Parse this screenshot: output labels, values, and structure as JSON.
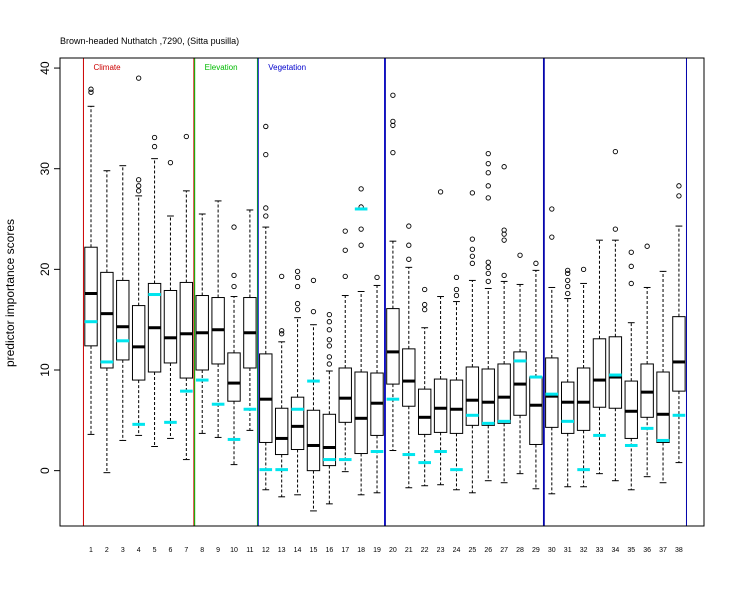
{
  "chart_data": {
    "type": "boxplot",
    "title": "Brown-headed Nuthatch ,7290, (Sitta pusilla)",
    "xlabel": "",
    "ylabel": "predictor importance scores",
    "ylim": [
      -5.5,
      41
    ],
    "yticks": [
      0,
      10,
      20,
      30,
      40
    ],
    "grid": false,
    "categories": [
      "1",
      "2",
      "3",
      "4",
      "5",
      "6",
      "7",
      "8",
      "9",
      "10",
      "11",
      "12",
      "13",
      "14",
      "15",
      "16",
      "17",
      "18",
      "19",
      "20",
      "21",
      "22",
      "23",
      "24",
      "25",
      "26",
      "27",
      "28",
      "29",
      "30",
      "31",
      "32",
      "33",
      "34",
      "35",
      "36",
      "37",
      "38"
    ],
    "groups": [
      {
        "label": "Climate",
        "color": "#cc0000",
        "start": 1,
        "end": 7
      },
      {
        "label": "Elevation",
        "color": "#00bb00",
        "start": 8,
        "end": 11
      },
      {
        "label": "Vegetation",
        "color": "#0000cc",
        "start": 12,
        "end": 19
      },
      {
        "label": "",
        "color": "#0000aa",
        "start": 20,
        "end": 29
      },
      {
        "label": "",
        "color": "#0000aa",
        "start": 30,
        "end": 38
      }
    ],
    "marker_color": "#00e5ee",
    "boxes": [
      {
        "x": "1",
        "low": 3.6,
        "q1": 12.4,
        "median": 17.6,
        "q3": 22.2,
        "high": 36.2,
        "outliers": [
          37.6,
          37.9
        ],
        "marker": 14.8
      },
      {
        "x": "2",
        "low": -0.2,
        "q1": 10.2,
        "median": 15.6,
        "q3": 19.7,
        "high": 29.8,
        "outliers": [],
        "marker": 10.8
      },
      {
        "x": "3",
        "low": 3.0,
        "q1": 11.0,
        "median": 14.3,
        "q3": 18.9,
        "high": 30.3,
        "outliers": [],
        "marker": 12.9
      },
      {
        "x": "4",
        "low": 3.5,
        "q1": 9.0,
        "median": 12.3,
        "q3": 16.4,
        "high": 27.3,
        "outliers": [
          27.8,
          28.3,
          28.9,
          39.0
        ],
        "marker": 4.6
      },
      {
        "x": "5",
        "low": 2.4,
        "q1": 9.8,
        "median": 14.2,
        "q3": 18.6,
        "high": 31.0,
        "outliers": [
          32.2,
          33.1
        ],
        "marker": 17.5
      },
      {
        "x": "6",
        "low": 3.2,
        "q1": 10.7,
        "median": 13.2,
        "q3": 17.9,
        "high": 25.3,
        "outliers": [
          30.6
        ],
        "marker": 4.8
      },
      {
        "x": "7",
        "low": 1.1,
        "q1": 9.2,
        "median": 13.6,
        "q3": 18.7,
        "high": 27.8,
        "outliers": [
          33.2
        ],
        "marker": 7.9
      },
      {
        "x": "8",
        "low": 3.7,
        "q1": 10.0,
        "median": 13.7,
        "q3": 17.4,
        "high": 25.5,
        "outliers": [],
        "marker": 9.0
      },
      {
        "x": "9",
        "low": 3.3,
        "q1": 10.6,
        "median": 14.0,
        "q3": 17.2,
        "high": 26.8,
        "outliers": [],
        "marker": 6.6
      },
      {
        "x": "10",
        "low": 0.6,
        "q1": 6.9,
        "median": 8.7,
        "q3": 11.7,
        "high": 17.3,
        "outliers": [
          18.3,
          19.4,
          24.2
        ],
        "marker": 3.1
      },
      {
        "x": "11",
        "low": 4.0,
        "q1": 10.2,
        "median": 13.7,
        "q3": 17.2,
        "high": 25.9,
        "outliers": [],
        "marker": 6.1
      },
      {
        "x": "12",
        "low": -1.9,
        "q1": 2.8,
        "median": 7.1,
        "q3": 11.6,
        "high": 24.2,
        "outliers": [
          25.3,
          26.1,
          31.4,
          34.2
        ],
        "marker": 0.1
      },
      {
        "x": "13",
        "low": -2.6,
        "q1": 1.6,
        "median": 3.2,
        "q3": 6.2,
        "high": 12.8,
        "outliers": [
          13.6,
          13.9,
          19.3
        ],
        "marker": 0.1
      },
      {
        "x": "14",
        "low": -2.4,
        "q1": 2.1,
        "median": 4.4,
        "q3": 7.3,
        "high": 15.2,
        "outliers": [
          16.0,
          16.6,
          18.3,
          19.2,
          19.8
        ],
        "marker": 6.1
      },
      {
        "x": "15",
        "low": -4.0,
        "q1": 0.0,
        "median": 2.5,
        "q3": 6.0,
        "high": 14.5,
        "outliers": [
          15.8,
          18.9
        ],
        "marker": 8.9
      },
      {
        "x": "16",
        "low": -3.3,
        "q1": 0.5,
        "median": 2.3,
        "q3": 5.6,
        "high": 9.9,
        "outliers": [
          10.6,
          11.3,
          12.4,
          13.0,
          14.0,
          14.8,
          15.5
        ],
        "marker": 1.1
      },
      {
        "x": "17",
        "low": -0.1,
        "q1": 4.8,
        "median": 7.2,
        "q3": 10.2,
        "high": 17.4,
        "outliers": [
          19.3,
          21.9,
          23.8
        ],
        "marker": 1.1
      },
      {
        "x": "18",
        "low": -2.4,
        "q1": 1.7,
        "median": 5.2,
        "q3": 9.8,
        "high": 17.8,
        "outliers": [
          22.4,
          24.0,
          26.2,
          28.0
        ],
        "marker": 26.0
      },
      {
        "x": "19",
        "low": -2.2,
        "q1": 3.5,
        "median": 6.7,
        "q3": 9.7,
        "high": 18.4,
        "outliers": [
          19.2
        ],
        "marker": 1.9
      },
      {
        "x": "20",
        "low": 2.0,
        "q1": 8.6,
        "median": 11.8,
        "q3": 16.1,
        "high": 22.8,
        "outliers": [
          31.6,
          34.3,
          34.7,
          37.3
        ],
        "marker": 7.1
      },
      {
        "x": "21",
        "low": -1.7,
        "q1": 6.4,
        "median": 8.9,
        "q3": 12.1,
        "high": 20.2,
        "outliers": [
          21.0,
          22.4,
          24.3
        ],
        "marker": 1.6
      },
      {
        "x": "22",
        "low": -1.5,
        "q1": 3.6,
        "median": 5.3,
        "q3": 8.1,
        "high": 14.2,
        "outliers": [
          16.0,
          16.5,
          18.0
        ],
        "marker": 0.8
      },
      {
        "x": "23",
        "low": -1.4,
        "q1": 3.8,
        "median": 6.2,
        "q3": 9.1,
        "high": 17.3,
        "outliers": [
          27.7
        ],
        "marker": 1.9
      },
      {
        "x": "24",
        "low": -1.9,
        "q1": 3.7,
        "median": 6.1,
        "q3": 9.0,
        "high": 16.8,
        "outliers": [
          17.4,
          18.0,
          19.2
        ],
        "marker": 0.1
      },
      {
        "x": "25",
        "low": -2.2,
        "q1": 4.5,
        "median": 7.0,
        "q3": 10.3,
        "high": 18.9,
        "outliers": [
          20.6,
          21.3,
          22.0,
          23.0,
          27.6
        ],
        "marker": 5.5
      },
      {
        "x": "26",
        "low": -1.0,
        "q1": 4.5,
        "median": 6.8,
        "q3": 10.1,
        "high": 18.1,
        "outliers": [
          18.8,
          19.6,
          20.2,
          20.7,
          27.1,
          28.3,
          29.6,
          30.5,
          31.5
        ],
        "marker": 4.7
      },
      {
        "x": "27",
        "low": -1.2,
        "q1": 4.7,
        "median": 7.3,
        "q3": 10.6,
        "high": 18.8,
        "outliers": [
          19.4,
          22.9,
          23.5,
          23.9,
          30.2
        ],
        "marker": 4.9
      },
      {
        "x": "28",
        "low": -0.3,
        "q1": 5.5,
        "median": 8.6,
        "q3": 11.8,
        "high": 18.5,
        "outliers": [
          21.4
        ],
        "marker": 10.9
      },
      {
        "x": "29",
        "low": -1.8,
        "q1": 2.6,
        "median": 6.5,
        "q3": 9.3,
        "high": 19.9,
        "outliers": [
          20.6
        ],
        "marker": 9.3
      },
      {
        "x": "30",
        "low": -2.3,
        "q1": 4.3,
        "median": 7.4,
        "q3": 11.2,
        "high": 18.2,
        "outliers": [
          23.2,
          26.0
        ],
        "marker": 7.6
      },
      {
        "x": "31",
        "low": -1.6,
        "q1": 3.7,
        "median": 6.8,
        "q3": 8.8,
        "high": 17.1,
        "outliers": [
          17.6,
          18.3,
          18.9,
          19.6,
          19.9
        ],
        "marker": 4.9
      },
      {
        "x": "32",
        "low": -1.6,
        "q1": 4.0,
        "median": 6.8,
        "q3": 10.2,
        "high": 18.6,
        "outliers": [
          20.0
        ],
        "marker": 0.1
      },
      {
        "x": "33",
        "low": -0.3,
        "q1": 6.3,
        "median": 9.0,
        "q3": 13.1,
        "high": 22.9,
        "outliers": [],
        "marker": 3.5
      },
      {
        "x": "34",
        "low": -1.0,
        "q1": 6.2,
        "median": 9.3,
        "q3": 13.3,
        "high": 22.9,
        "outliers": [
          24.0,
          31.7
        ],
        "marker": 9.5
      },
      {
        "x": "35",
        "low": -1.9,
        "q1": 3.2,
        "median": 5.9,
        "q3": 8.9,
        "high": 14.7,
        "outliers": [
          18.6,
          20.3,
          21.7
        ],
        "marker": 2.5
      },
      {
        "x": "36",
        "low": -0.6,
        "q1": 5.3,
        "median": 7.8,
        "q3": 10.6,
        "high": 18.2,
        "outliers": [
          22.3
        ],
        "marker": 4.2
      },
      {
        "x": "37",
        "low": -1.2,
        "q1": 2.8,
        "median": 5.6,
        "q3": 9.8,
        "high": 19.8,
        "outliers": [],
        "marker": 3.0
      },
      {
        "x": "38",
        "low": 0.8,
        "q1": 7.9,
        "median": 10.8,
        "q3": 15.3,
        "high": 24.3,
        "outliers": [
          27.3,
          28.3
        ],
        "marker": 5.5
      }
    ]
  }
}
